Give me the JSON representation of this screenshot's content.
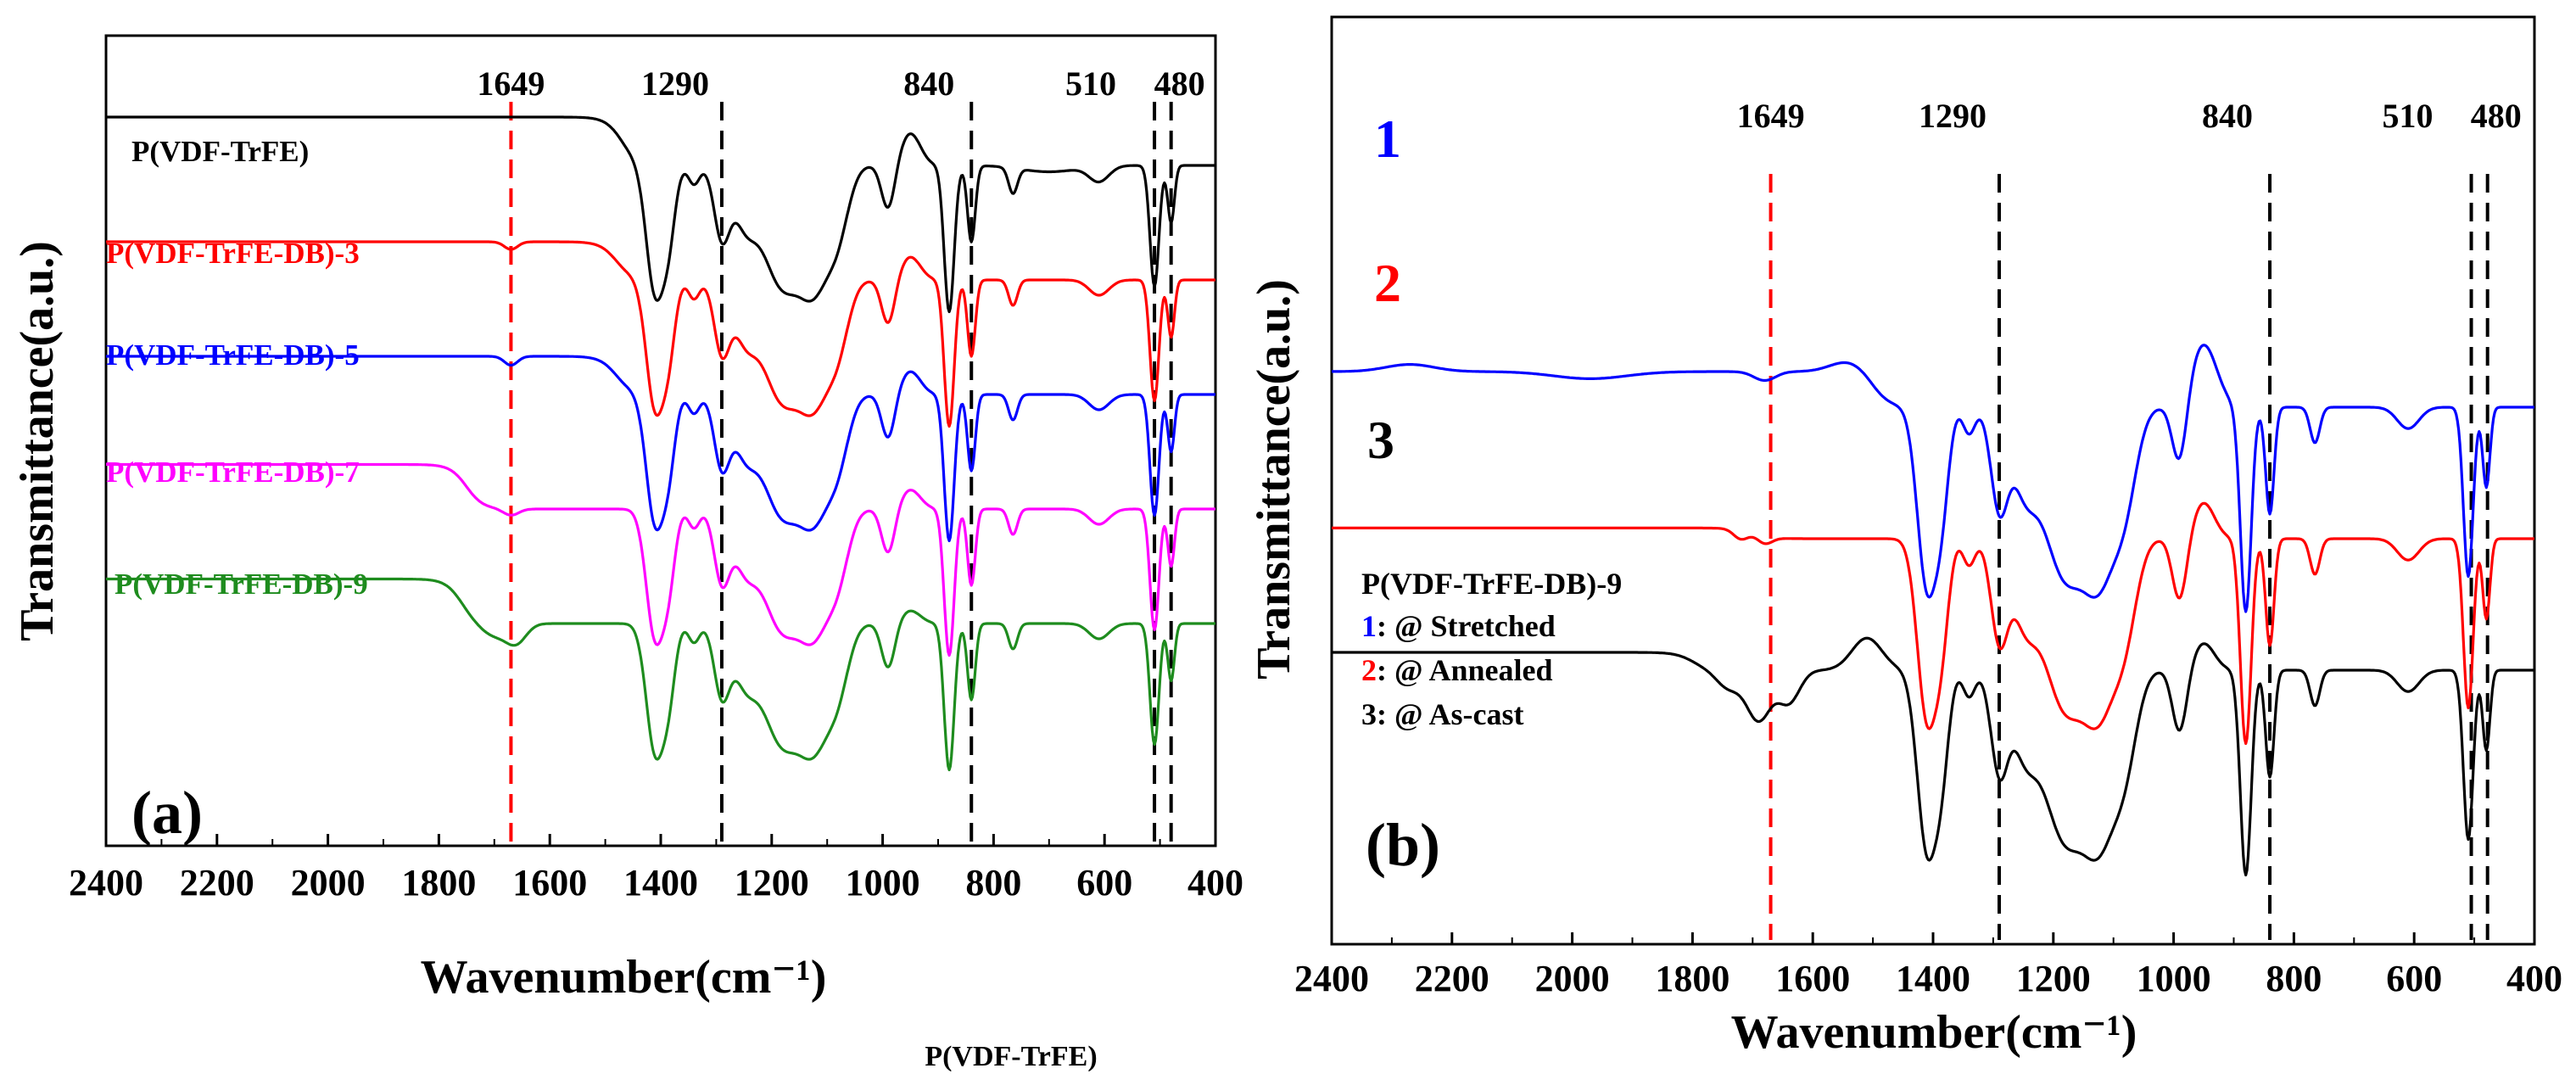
{
  "colors": {
    "black": "#000000",
    "red": "#ff0000",
    "blue": "#0000ff",
    "magenta": "#ff00ff",
    "green": "#1e8c1e"
  },
  "stray_label": "P(VDF-TrFE)",
  "chart_data": [
    {
      "type": "line",
      "panel_label": "(a)",
      "xlabel": "Wavenumber(cm⁻¹)",
      "ylabel": "Transmittance(a.u.)",
      "xlim": [
        2400,
        400
      ],
      "x_ticks": [
        2400,
        2200,
        2000,
        1800,
        1600,
        1400,
        1200,
        1000,
        800,
        600,
        400
      ],
      "x_reversed": true,
      "y_ticks_shown": false,
      "grid": false,
      "peak_markers": [
        {
          "label": "1649",
          "x": 1670,
          "color": "#ff0000"
        },
        {
          "label": "1290",
          "x": 1290,
          "color": "#000000"
        },
        {
          "label": "840",
          "x": 840,
          "color": "#000000"
        },
        {
          "label": "510",
          "x": 510,
          "color": "#000000"
        },
        {
          "label": "480",
          "x": 480,
          "color": "#000000"
        }
      ],
      "series": [
        {
          "name": "P(VDF-TrFE)",
          "color": "#000000",
          "offset": 4,
          "type_key": "pure"
        },
        {
          "name": "P(VDF-TrFE-DB)-3",
          "color": "#ff0000",
          "offset": 3,
          "type_key": "db3"
        },
        {
          "name": "P(VDF-TrFE-DB)-5",
          "color": "#0000ff",
          "offset": 2,
          "type_key": "db5"
        },
        {
          "name": "P(VDF-TrFE-DB)-7",
          "color": "#ff00ff",
          "offset": 1,
          "type_key": "db7"
        },
        {
          "name": "P(VDF-TrFE-DB)-9",
          "color": "#1e8c1e",
          "offset": 0,
          "type_key": "db9"
        }
      ]
    },
    {
      "type": "line",
      "panel_label": "(b)",
      "xlabel": "Wavenumber(cm⁻¹)",
      "ylabel": "Transmittance(a.u.)",
      "xlim": [
        2400,
        400
      ],
      "x_ticks": [
        2400,
        2200,
        2000,
        1800,
        1600,
        1400,
        1200,
        1000,
        800,
        600,
        400
      ],
      "x_reversed": true,
      "y_ticks_shown": false,
      "grid": false,
      "peak_markers": [
        {
          "label": "1649",
          "x": 1670,
          "color": "#ff0000"
        },
        {
          "label": "1290",
          "x": 1290,
          "color": "#000000"
        },
        {
          "label": "840",
          "x": 840,
          "color": "#000000"
        },
        {
          "label": "510",
          "x": 505,
          "color": "#000000"
        },
        {
          "label": "480",
          "x": 478,
          "color": "#000000"
        }
      ],
      "series": [
        {
          "name": "1",
          "color": "#0000ff",
          "offset": 2,
          "type_key": "stretched"
        },
        {
          "name": "2",
          "color": "#ff0000",
          "offset": 1,
          "type_key": "annealed"
        },
        {
          "name": "3",
          "color": "#000000",
          "offset": 0,
          "type_key": "ascast"
        }
      ],
      "legend": {
        "title": "P(VDF-TrFE-DB)-9",
        "entries": [
          {
            "num": "1",
            "text": ": @ Stretched",
            "color": "#0000ff"
          },
          {
            "num": "2",
            "text": ": @ Annealed",
            "color": "#ff0000"
          },
          {
            "num": "3",
            "text": ": @ As-cast",
            "color": "#000000"
          }
        ]
      }
    }
  ]
}
